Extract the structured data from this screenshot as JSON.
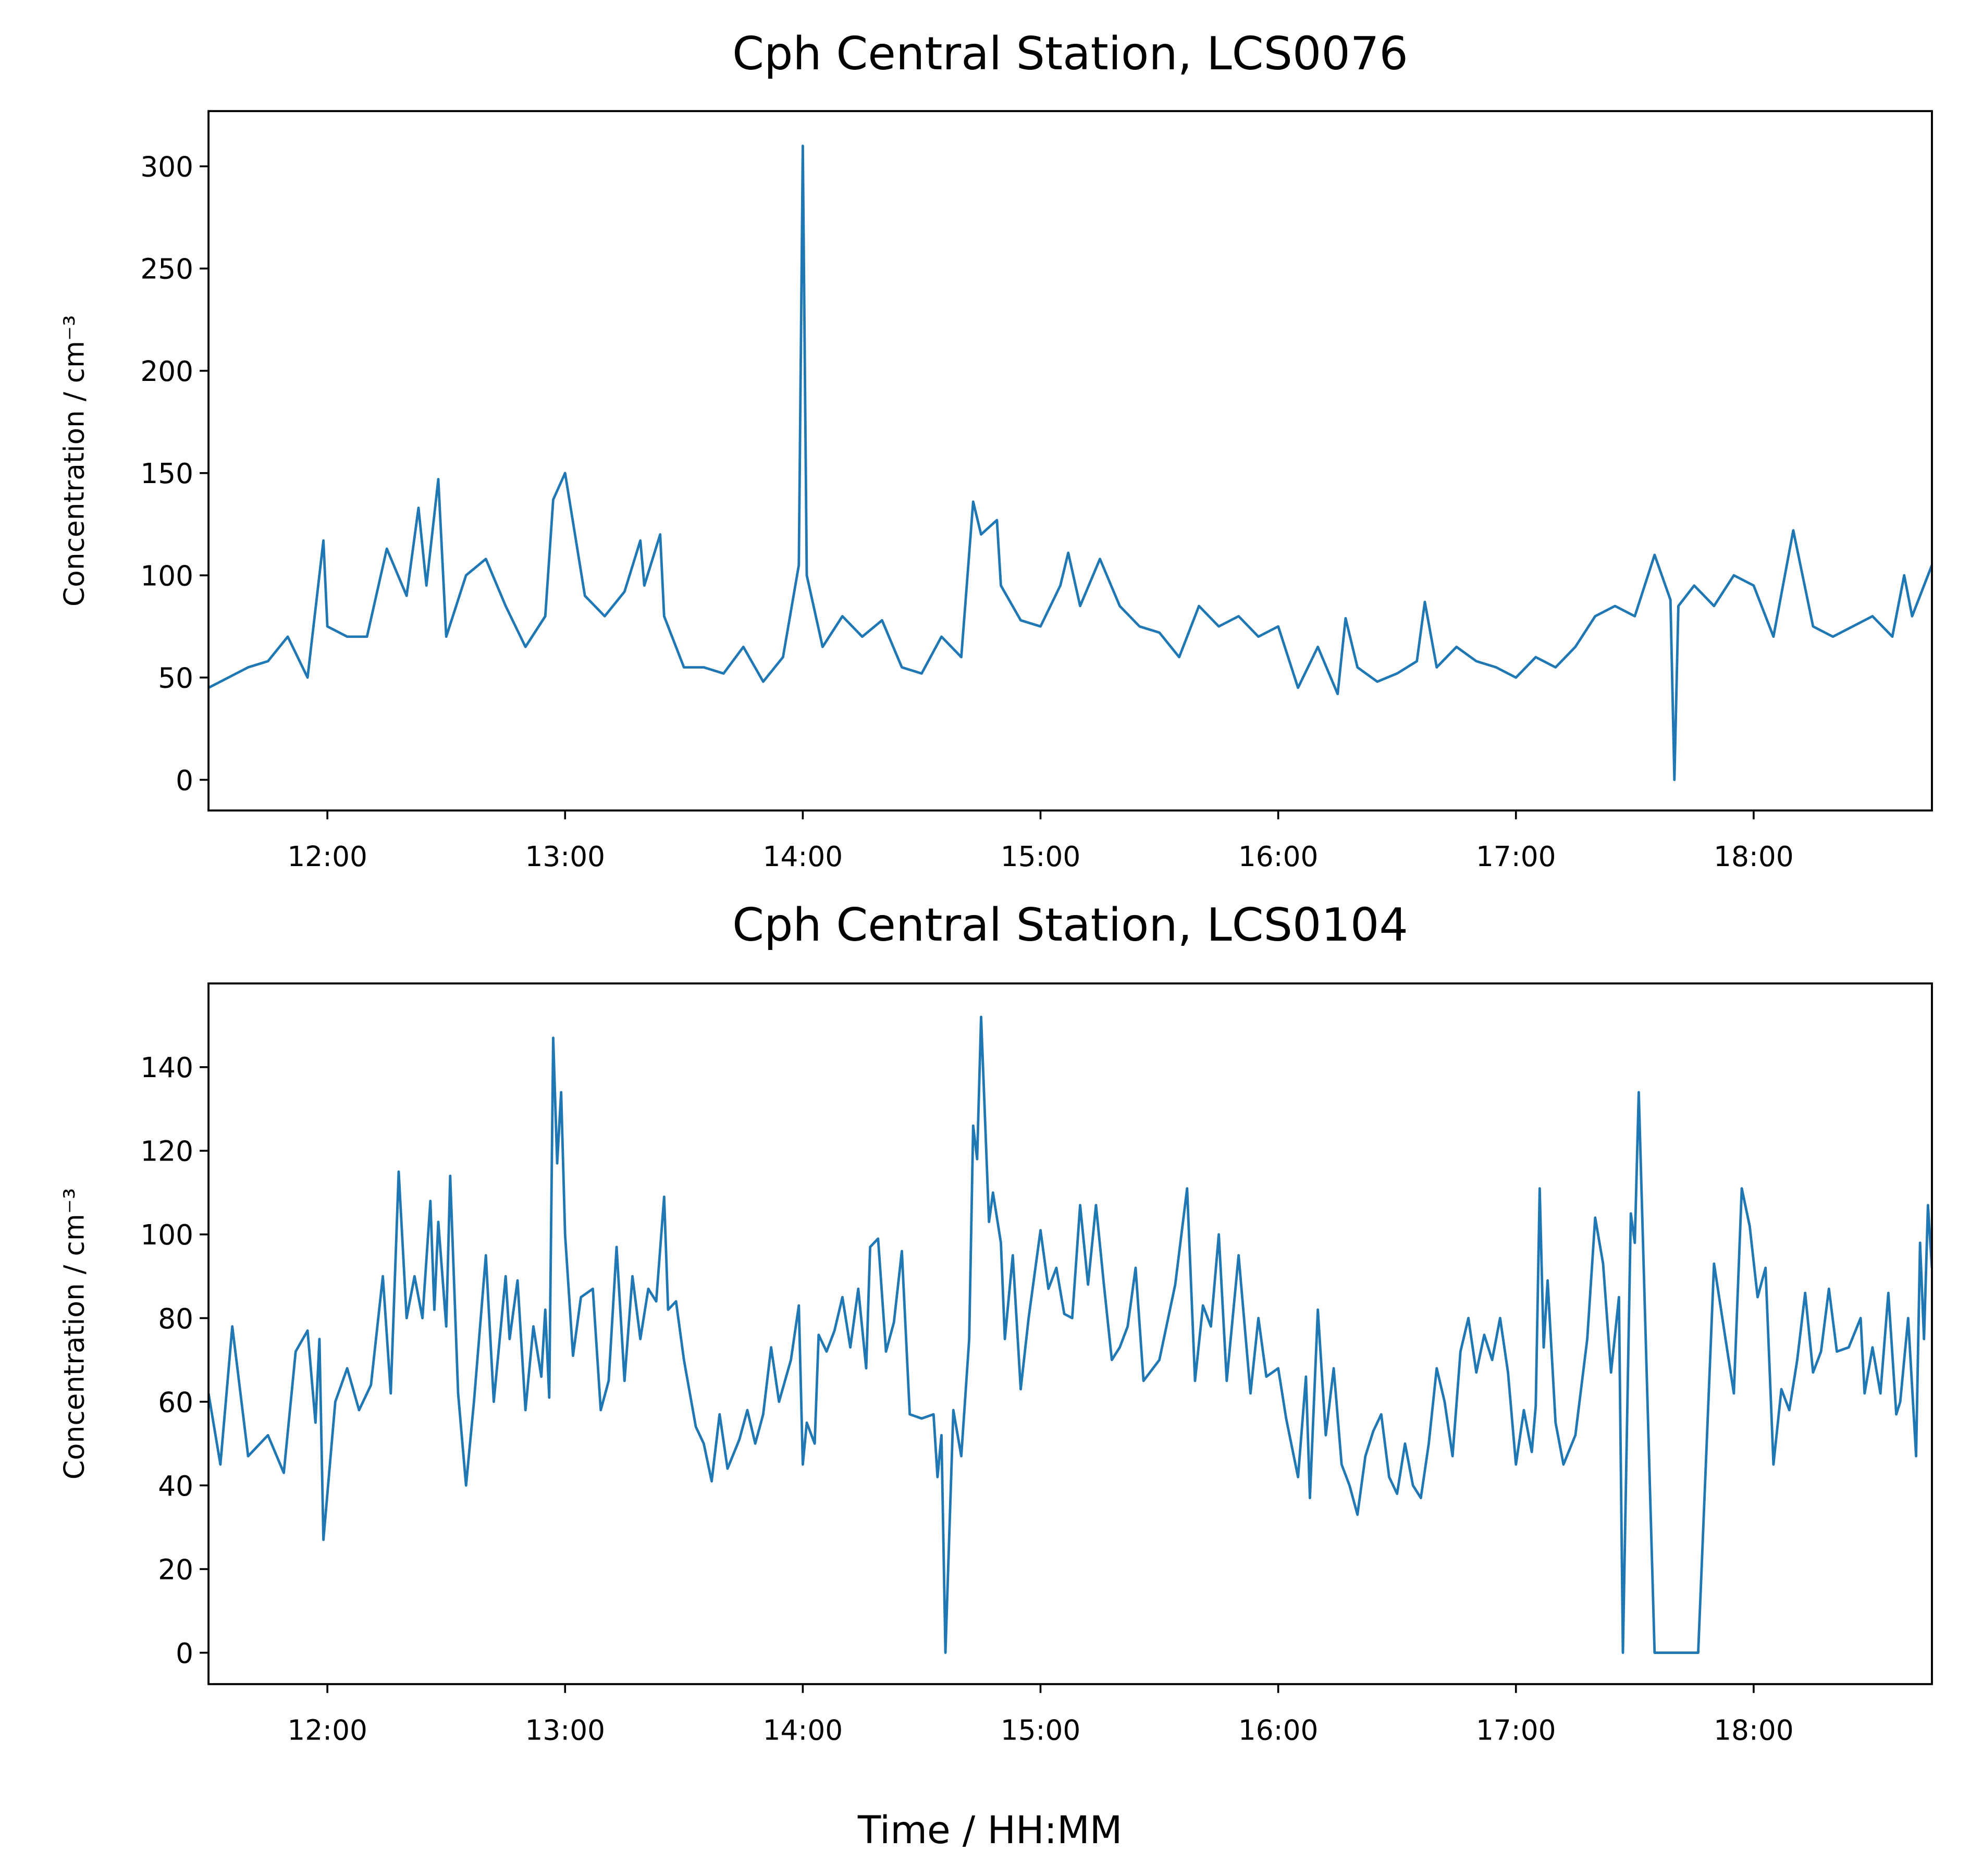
{
  "xlabel": "Time / HH:MM",
  "chart_data": [
    {
      "type": "line",
      "title": "Cph Central Station, LCS0076",
      "ylabel": "Concentration / cm⁻³",
      "xlim": [
        "11:30",
        "18:45"
      ],
      "xticks": [
        "12:00",
        "13:00",
        "14:00",
        "15:00",
        "16:00",
        "17:00",
        "18:00"
      ],
      "ylim": [
        -15,
        327
      ],
      "yticks": [
        0,
        50,
        100,
        150,
        200,
        250,
        300
      ],
      "color": "#1f77b4",
      "x": [
        "11:30",
        "11:35",
        "11:40",
        "11:45",
        "11:50",
        "11:55",
        "11:59",
        "12:00",
        "12:05",
        "12:10",
        "12:15",
        "12:20",
        "12:23",
        "12:25",
        "12:28",
        "12:30",
        "12:35",
        "12:40",
        "12:45",
        "12:50",
        "12:55",
        "12:57",
        "13:00",
        "13:05",
        "13:10",
        "13:15",
        "13:19",
        "13:20",
        "13:24",
        "13:25",
        "13:30",
        "13:35",
        "13:40",
        "13:45",
        "13:50",
        "13:55",
        "13:59",
        "14:00",
        "14:01",
        "14:05",
        "14:10",
        "14:15",
        "14:20",
        "14:25",
        "14:30",
        "14:35",
        "14:40",
        "14:43",
        "14:45",
        "14:49",
        "14:50",
        "14:55",
        "15:00",
        "15:05",
        "15:07",
        "15:10",
        "15:15",
        "15:20",
        "15:25",
        "15:30",
        "15:35",
        "15:40",
        "15:45",
        "15:50",
        "15:55",
        "16:00",
        "16:05",
        "16:10",
        "16:15",
        "16:17",
        "16:20",
        "16:25",
        "16:30",
        "16:35",
        "16:37",
        "16:40",
        "16:45",
        "16:50",
        "16:55",
        "17:00",
        "17:05",
        "17:10",
        "17:15",
        "17:20",
        "17:25",
        "17:30",
        "17:35",
        "17:39",
        "17:40",
        "17:41",
        "17:45",
        "17:50",
        "17:55",
        "18:00",
        "18:05",
        "18:10",
        "18:15",
        "18:20",
        "18:25",
        "18:30",
        "18:35",
        "18:38",
        "18:40",
        "18:45"
      ],
      "values": [
        45,
        50,
        55,
        58,
        70,
        50,
        117,
        75,
        70,
        70,
        113,
        90,
        133,
        95,
        147,
        70,
        100,
        108,
        85,
        65,
        80,
        137,
        150,
        90,
        80,
        92,
        117,
        95,
        120,
        80,
        55,
        55,
        52,
        65,
        48,
        60,
        105,
        310,
        100,
        65,
        80,
        70,
        78,
        55,
        52,
        70,
        60,
        136,
        120,
        127,
        95,
        78,
        75,
        95,
        111,
        85,
        108,
        85,
        75,
        72,
        60,
        85,
        75,
        80,
        70,
        75,
        45,
        65,
        42,
        79,
        55,
        48,
        52,
        58,
        87,
        55,
        65,
        58,
        55,
        50,
        60,
        55,
        65,
        80,
        85,
        80,
        110,
        88,
        0,
        85,
        95,
        85,
        100,
        95,
        70,
        122,
        75,
        70,
        75,
        80,
        70,
        100,
        80,
        105
      ]
    },
    {
      "type": "line",
      "title": "Cph Central Station, LCS0104",
      "ylabel": "Concentration / cm⁻³",
      "xlim": [
        "11:30",
        "18:45"
      ],
      "xticks": [
        "12:00",
        "13:00",
        "14:00",
        "15:00",
        "16:00",
        "17:00",
        "18:00"
      ],
      "ylim": [
        -7.5,
        160
      ],
      "yticks": [
        0,
        20,
        40,
        60,
        80,
        100,
        120,
        140
      ],
      "color": "#1f77b4",
      "x": [
        "11:30",
        "11:33",
        "11:36",
        "11:40",
        "11:45",
        "11:49",
        "11:52",
        "11:55",
        "11:57",
        "11:58",
        "11:59",
        "12:02",
        "12:05",
        "12:08",
        "12:11",
        "12:14",
        "12:16",
        "12:18",
        "12:20",
        "12:22",
        "12:24",
        "12:26",
        "12:27",
        "12:28",
        "12:30",
        "12:31",
        "12:33",
        "12:35",
        "12:37",
        "12:40",
        "12:42",
        "12:45",
        "12:46",
        "12:48",
        "12:50",
        "12:52",
        "12:54",
        "12:55",
        "12:56",
        "12:57",
        "12:58",
        "12:59",
        "13:00",
        "13:02",
        "13:04",
        "13:07",
        "13:09",
        "13:11",
        "13:13",
        "13:15",
        "13:17",
        "13:19",
        "13:21",
        "13:23",
        "13:25",
        "13:26",
        "13:28",
        "13:30",
        "13:33",
        "13:35",
        "13:37",
        "13:39",
        "13:41",
        "13:44",
        "13:46",
        "13:48",
        "13:50",
        "13:52",
        "13:54",
        "13:57",
        "13:59",
        "14:00",
        "14:01",
        "14:03",
        "14:04",
        "14:06",
        "14:08",
        "14:10",
        "14:12",
        "14:14",
        "14:16",
        "14:17",
        "14:19",
        "14:21",
        "14:23",
        "14:25",
        "14:27",
        "14:30",
        "14:33",
        "14:34",
        "14:35",
        "14:36",
        "14:38",
        "14:40",
        "14:42",
        "14:43",
        "14:44",
        "14:45",
        "14:47",
        "14:48",
        "14:50",
        "14:51",
        "14:53",
        "14:55",
        "14:57",
        "15:00",
        "15:02",
        "15:04",
        "15:06",
        "15:08",
        "15:10",
        "15:12",
        "15:14",
        "15:16",
        "15:18",
        "15:20",
        "15:22",
        "15:24",
        "15:26",
        "15:30",
        "15:34",
        "15:37",
        "15:39",
        "15:41",
        "15:43",
        "15:45",
        "15:47",
        "15:50",
        "15:53",
        "15:55",
        "15:57",
        "16:00",
        "16:02",
        "16:05",
        "16:07",
        "16:08",
        "16:10",
        "16:12",
        "16:14",
        "16:16",
        "16:18",
        "16:20",
        "16:22",
        "16:24",
        "16:26",
        "16:28",
        "16:30",
        "16:32",
        "16:34",
        "16:36",
        "16:38",
        "16:40",
        "16:42",
        "16:44",
        "16:46",
        "16:48",
        "16:50",
        "16:52",
        "16:54",
        "16:56",
        "16:58",
        "17:00",
        "17:02",
        "17:04",
        "17:05",
        "17:06",
        "17:07",
        "17:08",
        "17:10",
        "17:12",
        "17:15",
        "17:18",
        "17:20",
        "17:22",
        "17:24",
        "17:26",
        "17:27",
        "17:29",
        "17:30",
        "17:31",
        "17:35",
        "17:46",
        "17:50",
        "17:55",
        "17:57",
        "17:59",
        "18:01",
        "18:03",
        "18:05",
        "18:07",
        "18:09",
        "18:11",
        "18:13",
        "18:15",
        "18:17",
        "18:19",
        "18:21",
        "18:24",
        "18:27",
        "18:28",
        "18:30",
        "18:32",
        "18:34",
        "18:36",
        "18:37",
        "18:39",
        "18:41",
        "18:42",
        "18:43",
        "18:44",
        "18:45"
      ],
      "values": [
        62,
        45,
        78,
        47,
        52,
        43,
        72,
        77,
        55,
        75,
        27,
        60,
        68,
        58,
        64,
        90,
        62,
        115,
        80,
        90,
        80,
        108,
        82,
        103,
        78,
        114,
        62,
        40,
        60,
        95,
        60,
        90,
        75,
        89,
        58,
        78,
        66,
        82,
        61,
        147,
        117,
        134,
        100,
        71,
        85,
        87,
        58,
        65,
        97,
        65,
        90,
        75,
        87,
        84,
        109,
        82,
        84,
        70,
        54,
        50,
        41,
        57,
        44,
        51,
        58,
        50,
        57,
        73,
        60,
        70,
        83,
        45,
        55,
        50,
        76,
        72,
        77,
        85,
        73,
        87,
        68,
        97,
        99,
        72,
        79,
        96,
        57,
        56,
        57,
        42,
        52,
        0,
        58,
        47,
        75,
        126,
        118,
        152,
        103,
        110,
        98,
        75,
        95,
        63,
        80,
        101,
        87,
        92,
        81,
        80,
        107,
        88,
        107,
        88,
        70,
        73,
        78,
        92,
        65,
        70,
        88,
        111,
        65,
        83,
        78,
        100,
        65,
        95,
        62,
        80,
        66,
        68,
        56,
        42,
        66,
        37,
        82,
        52,
        68,
        45,
        40,
        33,
        47,
        53,
        57,
        42,
        38,
        50,
        40,
        37,
        50,
        68,
        60,
        47,
        72,
        80,
        67,
        76,
        70,
        80,
        67,
        45,
        58,
        48,
        59,
        111,
        73,
        89,
        55,
        45,
        52,
        75,
        104,
        93,
        67,
        85,
        0,
        105,
        98,
        134,
        0,
        0,
        93,
        62,
        111,
        102,
        85,
        92,
        45,
        63,
        58,
        70,
        86,
        67,
        72,
        87,
        72,
        73,
        80,
        62,
        73,
        62,
        86,
        57,
        60,
        80,
        47,
        98,
        75,
        107,
        92
      ]
    }
  ]
}
